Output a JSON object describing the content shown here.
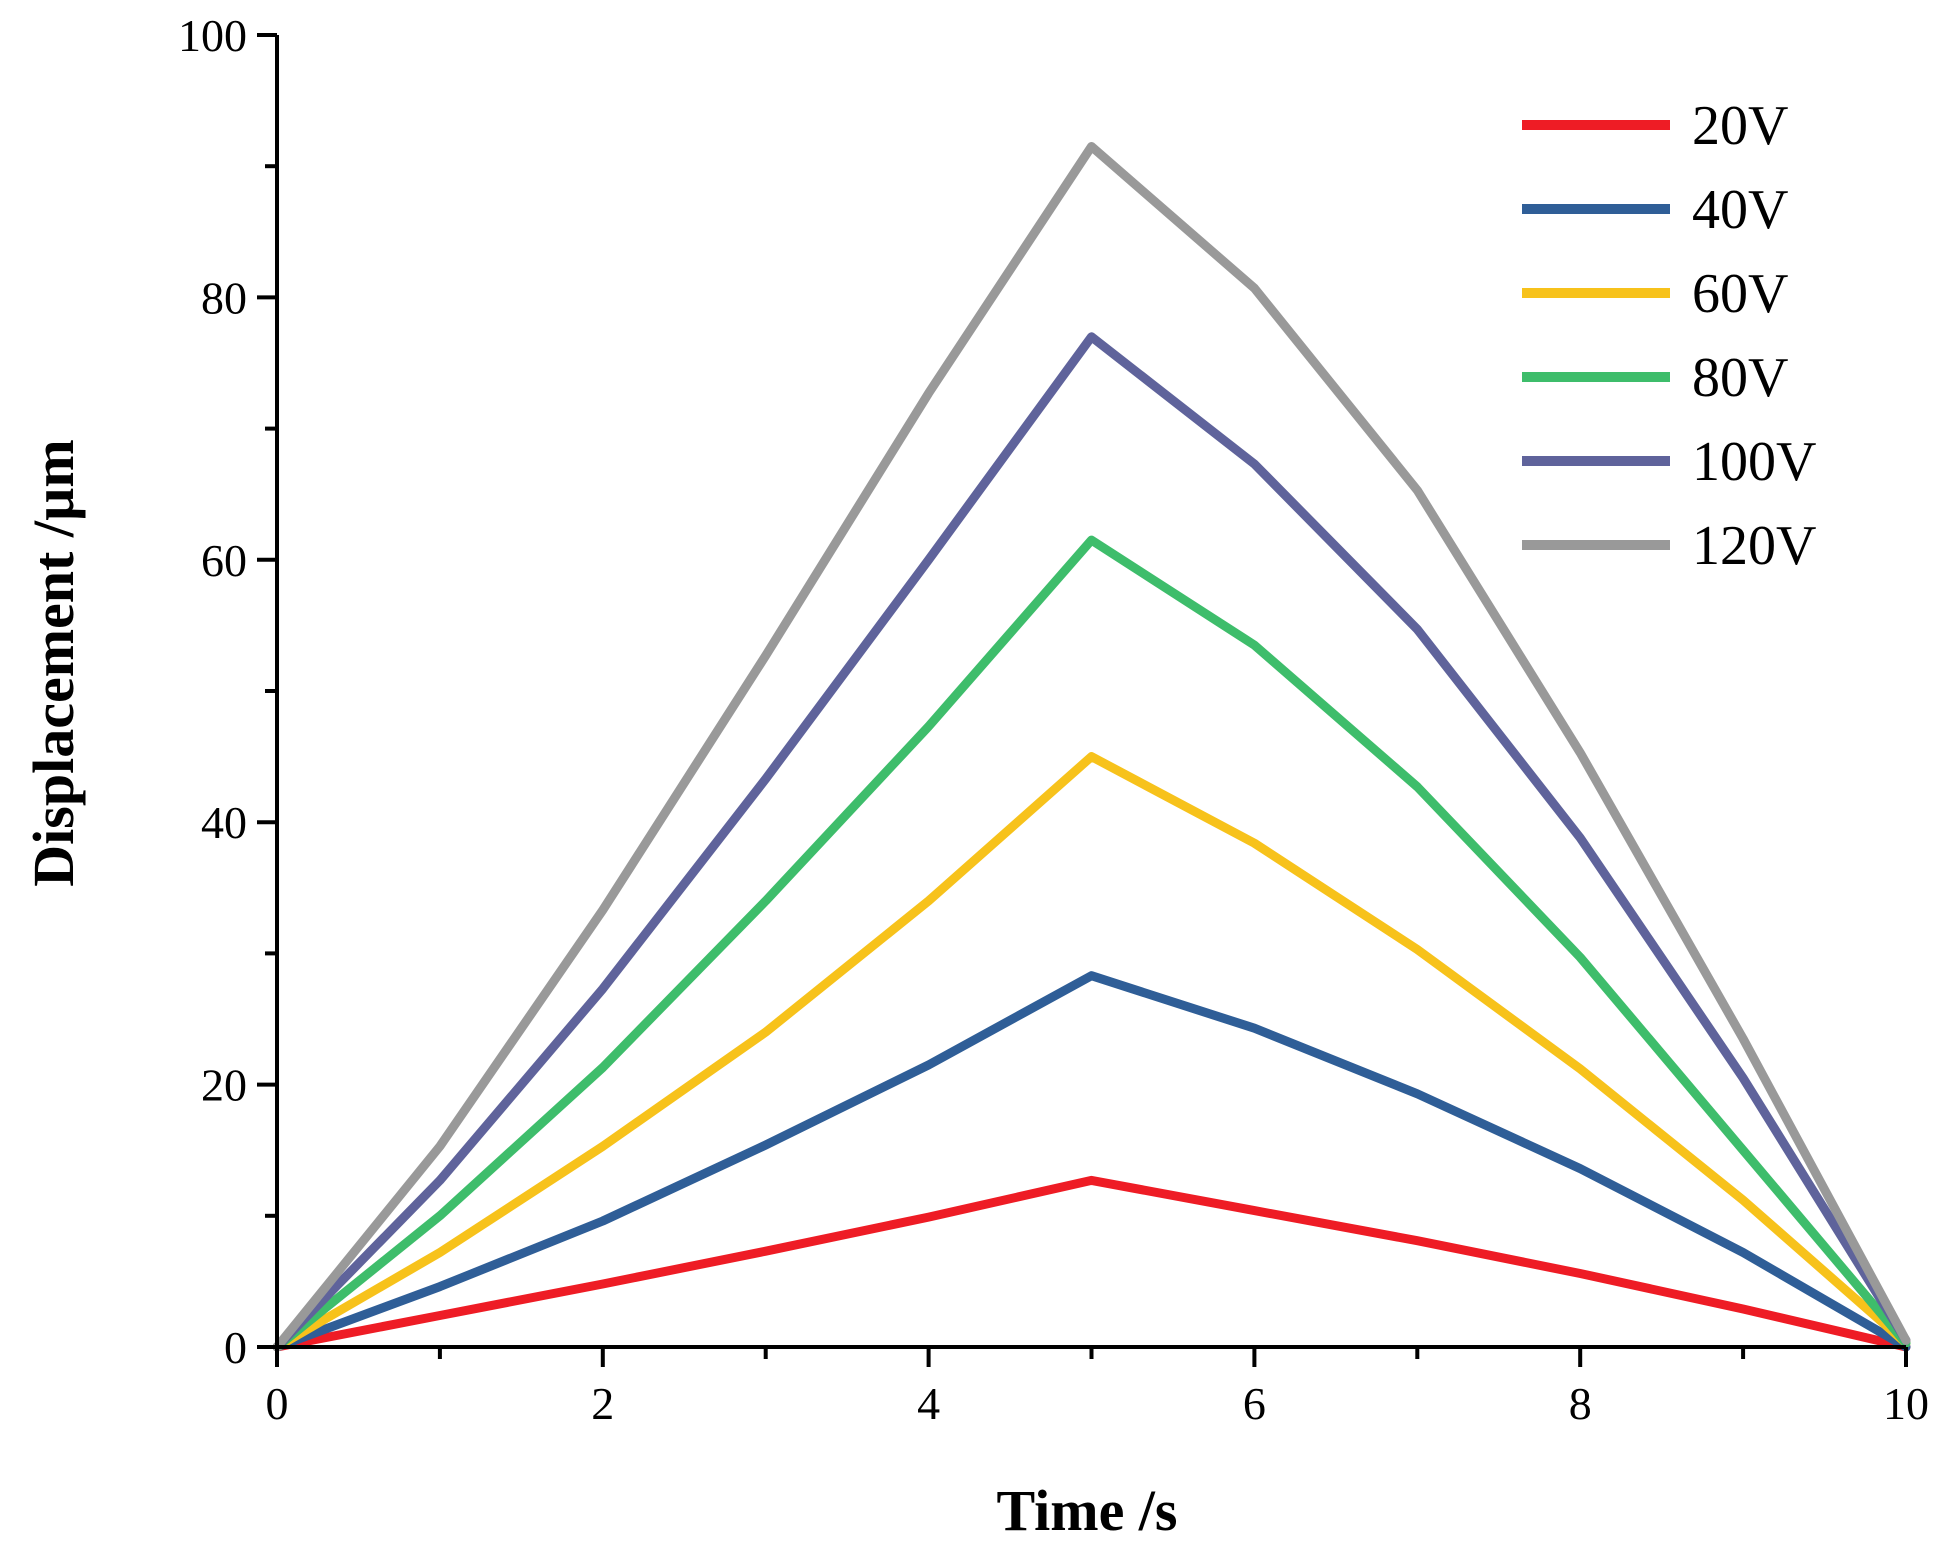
{
  "chart_data": {
    "type": "line",
    "title": "",
    "xlabel": "Time  /s",
    "ylabel": "Displacement  /µm",
    "xlim": [
      0,
      10
    ],
    "ylim": [
      0,
      100
    ],
    "x_major_ticks": [
      0,
      2,
      4,
      6,
      8,
      10
    ],
    "x_minor_ticks": [
      1,
      3,
      5,
      7,
      9
    ],
    "y_major_ticks": [
      0,
      20,
      40,
      60,
      80,
      100
    ],
    "y_minor_ticks": [
      10,
      30,
      50,
      70,
      90
    ],
    "legend_position": "top-right",
    "series": [
      {
        "name": "20V",
        "color": "#ee1c25",
        "points": [
          [
            0,
            0
          ],
          [
            1,
            2.4
          ],
          [
            2,
            4.8
          ],
          [
            3,
            7.3
          ],
          [
            4,
            9.9
          ],
          [
            5,
            12.7
          ],
          [
            6,
            10.4
          ],
          [
            7,
            8.1
          ],
          [
            8,
            5.6
          ],
          [
            9,
            2.9
          ],
          [
            10,
            0
          ]
        ]
      },
      {
        "name": "40V",
        "color": "#2f5e97",
        "points": [
          [
            0,
            0
          ],
          [
            1,
            4.6
          ],
          [
            2,
            9.6
          ],
          [
            3,
            15.4
          ],
          [
            4,
            21.5
          ],
          [
            5,
            28.3
          ],
          [
            6,
            24.3
          ],
          [
            7,
            19.3
          ],
          [
            8,
            13.6
          ],
          [
            9,
            7.2
          ],
          [
            10,
            0
          ]
        ]
      },
      {
        "name": "60V",
        "color": "#f7c21b",
        "points": [
          [
            0,
            0
          ],
          [
            1,
            7.2
          ],
          [
            2,
            15.3
          ],
          [
            3,
            24.0
          ],
          [
            4,
            34.0
          ],
          [
            5,
            45.0
          ],
          [
            6,
            38.4
          ],
          [
            7,
            30.3
          ],
          [
            8,
            21.2
          ],
          [
            9,
            11.2
          ],
          [
            10,
            0.3
          ]
        ]
      },
      {
        "name": "80V",
        "color": "#3ebd6b",
        "points": [
          [
            0,
            0
          ],
          [
            1,
            10.0
          ],
          [
            2,
            21.3
          ],
          [
            3,
            34.0
          ],
          [
            4,
            47.3
          ],
          [
            5,
            61.5
          ],
          [
            6,
            53.5
          ],
          [
            7,
            42.7
          ],
          [
            8,
            29.7
          ],
          [
            9,
            15.0
          ],
          [
            10,
            0.3
          ]
        ]
      },
      {
        "name": "100V",
        "color": "#5f639b",
        "points": [
          [
            0,
            0
          ],
          [
            1,
            12.7
          ],
          [
            2,
            27.3
          ],
          [
            3,
            43.3
          ],
          [
            4,
            60.0
          ],
          [
            5,
            77.0
          ],
          [
            6,
            67.3
          ],
          [
            7,
            54.7
          ],
          [
            8,
            38.8
          ],
          [
            9,
            20.5
          ],
          [
            10,
            0.5
          ]
        ]
      },
      {
        "name": "120V",
        "color": "#999999",
        "points": [
          [
            0,
            0
          ],
          [
            1,
            15.3
          ],
          [
            2,
            33.3
          ],
          [
            3,
            52.7
          ],
          [
            4,
            72.7
          ],
          [
            5,
            91.5
          ],
          [
            6,
            80.7
          ],
          [
            7,
            65.3
          ],
          [
            8,
            45.3
          ],
          [
            9,
            23.5
          ],
          [
            10,
            0.5
          ]
        ]
      }
    ]
  }
}
